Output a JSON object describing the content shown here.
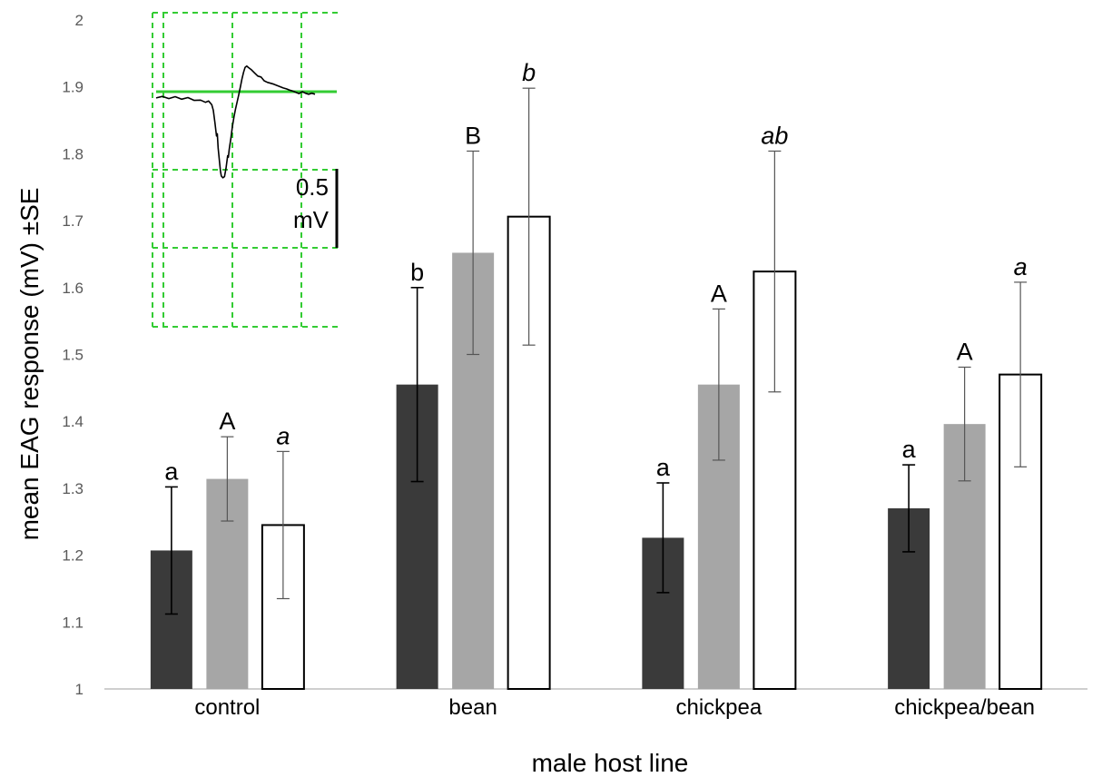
{
  "chart_data": {
    "type": "bar",
    "xlabel": "male host line",
    "ylabel": "mean EAG response (mV) ±SE",
    "ylim": [
      1,
      2
    ],
    "yticks": [
      "1",
      "1.1",
      "1.2",
      "1.3",
      "1.4",
      "1.5",
      "1.6",
      "1.7",
      "1.8",
      "1.9",
      "2"
    ],
    "categories": [
      "control",
      "bean",
      "chickpea",
      "chickpea/bean"
    ],
    "series": [
      {
        "color": "#3a3a3a",
        "values": [
          1.207,
          1.455,
          1.226,
          1.27
        ],
        "errors": [
          0.095,
          0.145,
          0.082,
          0.065
        ],
        "labels": [
          "a",
          "b",
          "a",
          "a"
        ],
        "label_style": "upright"
      },
      {
        "color": "#a6a6a6",
        "values": [
          1.314,
          1.652,
          1.455,
          1.396
        ],
        "errors": [
          0.063,
          0.152,
          0.113,
          0.085
        ],
        "labels": [
          "A",
          "B",
          "A",
          "A"
        ],
        "label_style": "upright"
      },
      {
        "color": "#ffffff",
        "values": [
          1.245,
          1.706,
          1.624,
          1.47
        ],
        "errors": [
          0.11,
          0.192,
          0.18,
          0.138
        ],
        "labels": [
          "a",
          "b",
          "ab",
          "a"
        ],
        "label_style": "italic"
      }
    ],
    "grid": false,
    "legend": "none",
    "inset": {
      "scale_bar_value": "0.5",
      "scale_bar_unit": "mV",
      "grid_color": "#33cc33",
      "baseline_color": "#33cc33",
      "trace_color": "#000000",
      "trace": [
        [
          0,
          0.2
        ],
        [
          0.04,
          0.15
        ],
        [
          0.08,
          0.22
        ],
        [
          0.12,
          0.16
        ],
        [
          0.16,
          0.24
        ],
        [
          0.2,
          0.19
        ],
        [
          0.24,
          0.28
        ],
        [
          0.28,
          0.27
        ],
        [
          0.31,
          0.34
        ],
        [
          0.33,
          0.3
        ],
        [
          0.35,
          0.42
        ],
        [
          0.36,
          0.6
        ],
        [
          0.37,
          1.0
        ],
        [
          0.38,
          1.42
        ],
        [
          0.385,
          1.35
        ],
        [
          0.39,
          1.8
        ],
        [
          0.4,
          2.3
        ],
        [
          0.405,
          2.55
        ],
        [
          0.41,
          2.7
        ],
        [
          0.42,
          2.76
        ],
        [
          0.43,
          2.72
        ],
        [
          0.44,
          2.45
        ],
        [
          0.45,
          2.05
        ],
        [
          0.455,
          2.1
        ],
        [
          0.46,
          1.85
        ],
        [
          0.47,
          1.5
        ],
        [
          0.48,
          1.12
        ],
        [
          0.49,
          0.8
        ],
        [
          0.5,
          0.55
        ],
        [
          0.51,
          0.32
        ],
        [
          0.52,
          0.1
        ],
        [
          0.53,
          -0.15
        ],
        [
          0.54,
          -0.4
        ],
        [
          0.55,
          -0.62
        ],
        [
          0.56,
          -0.78
        ],
        [
          0.57,
          -0.82
        ],
        [
          0.58,
          -0.78
        ],
        [
          0.6,
          -0.7
        ],
        [
          0.62,
          -0.6
        ],
        [
          0.64,
          -0.5
        ],
        [
          0.66,
          -0.47
        ],
        [
          0.68,
          -0.35
        ],
        [
          0.7,
          -0.3
        ],
        [
          0.72,
          -0.27
        ],
        [
          0.74,
          -0.24
        ],
        [
          0.76,
          -0.2
        ],
        [
          0.78,
          -0.16
        ],
        [
          0.8,
          -0.12
        ],
        [
          0.82,
          -0.09
        ],
        [
          0.84,
          -0.05
        ],
        [
          0.86,
          -0.02
        ],
        [
          0.88,
          0.02
        ],
        [
          0.9,
          0.06
        ],
        [
          0.92,
          0.0
        ],
        [
          0.94,
          0.05
        ],
        [
          0.96,
          0.08
        ],
        [
          0.98,
          0.05
        ],
        [
          1.0,
          0.08
        ]
      ]
    }
  }
}
